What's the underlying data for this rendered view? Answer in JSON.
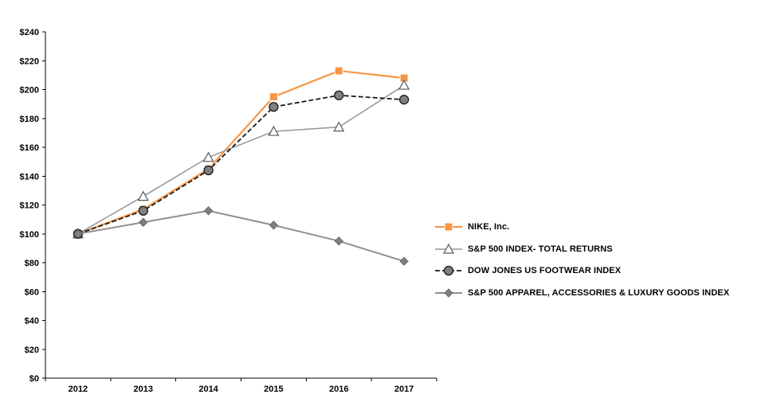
{
  "chart_data": {
    "type": "line",
    "title": "",
    "x": [
      "2012",
      "2013",
      "2014",
      "2015",
      "2016",
      "2017"
    ],
    "series": [
      {
        "name": "NIKE, Inc.",
        "values": [
          100,
          117,
          145,
          195,
          213,
          208
        ],
        "color": "#F79646",
        "marker": "square",
        "marker_fill": "#F79646",
        "marker_stroke": "#FFFFFF",
        "line_style": "solid"
      },
      {
        "name": "S&P 500 INDEX- TOTAL RETURNS",
        "values": [
          100,
          126,
          153,
          171,
          174,
          203
        ],
        "color": "#999999",
        "marker": "triangle",
        "marker_fill": "#FFFFFF",
        "marker_stroke": "#595959",
        "line_style": "solid"
      },
      {
        "name": "DOW JONES US FOOTWEAR INDEX",
        "values": [
          100,
          116,
          144,
          188,
          196,
          193
        ],
        "color": "#1A1A1A",
        "marker": "circle",
        "marker_fill": "#808080",
        "marker_stroke": "#1A1A1A",
        "line_style": "dashed"
      },
      {
        "name": "S&P 500 APPAREL, ACCESSORIES & LUXURY GOODS INDEX",
        "values": [
          100,
          108,
          116,
          106,
          95,
          81
        ],
        "color": "#8F8F8F",
        "marker": "diamond",
        "marker_fill": "#7F7F7F",
        "marker_stroke": "#6B6B6B",
        "line_style": "solid"
      }
    ],
    "ylim": [
      0,
      240
    ],
    "ytick_step": 20,
    "grid": false,
    "legend_position": "right"
  },
  "axis": {
    "y_tick_labels": [
      "$0",
      "$20",
      "$40",
      "$60",
      "$80",
      "$100",
      "$120",
      "$140",
      "$160",
      "$180",
      "$200",
      "$220",
      "$240"
    ],
    "x_tick_labels": [
      "2012",
      "2013",
      "2014",
      "2015",
      "2016",
      "2017"
    ]
  }
}
